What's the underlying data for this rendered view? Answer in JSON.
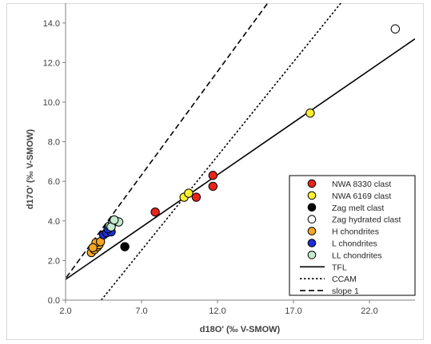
{
  "chart_data": {
    "type": "scatter",
    "xlabel": "d18O' (‰ V-SMOW)",
    "ylabel": "d17O' (‰ V-SMOW)",
    "xlim": [
      2.0,
      25.0
    ],
    "ylim": [
      0.0,
      15.0
    ],
    "x_ticks": [
      "2.0",
      "7.0",
      "12.0",
      "17.0",
      "22.0"
    ],
    "x_tick_values": [
      2,
      7,
      12,
      17,
      22
    ],
    "y_ticks": [
      "0.0",
      "2.0",
      "4.0",
      "6.0",
      "8.0",
      "10.0",
      "12.0",
      "14.0"
    ],
    "y_tick_values": [
      0,
      2,
      4,
      6,
      8,
      10,
      12,
      14
    ],
    "grid": false,
    "legend_position": "lower-right",
    "series": [
      {
        "name": "NWA 8330 clast",
        "color": "#e8231b",
        "marker": "circle",
        "points": [
          [
            7.9,
            4.45
          ],
          [
            10.6,
            5.2
          ],
          [
            11.7,
            6.3
          ],
          [
            11.7,
            5.75
          ]
        ]
      },
      {
        "name": "NWA 6169 clast",
        "color": "#fff12e",
        "marker": "circle",
        "points": [
          [
            9.8,
            5.2
          ],
          [
            10.1,
            5.4
          ],
          [
            18.1,
            9.45
          ]
        ]
      },
      {
        "name": "Zag melt clast",
        "color": "#000000",
        "marker": "circle",
        "points": [
          [
            5.9,
            2.7
          ]
        ]
      },
      {
        "name": "Zag hydrated clast",
        "color": "#ffffff",
        "marker": "circle",
        "points": [
          [
            23.7,
            13.7
          ]
        ]
      },
      {
        "name": "H chondrites",
        "color": "#f5a623",
        "marker": "circle",
        "points": [
          [
            3.7,
            2.4
          ],
          [
            3.9,
            2.55
          ],
          [
            4.1,
            2.7
          ],
          [
            4.2,
            2.8
          ],
          [
            4.0,
            2.9
          ],
          [
            4.3,
            2.95
          ],
          [
            3.8,
            2.65
          ]
        ]
      },
      {
        "name": "L chondrites",
        "color": "#1d2ed8",
        "marker": "circle",
        "points": [
          [
            4.5,
            3.3
          ],
          [
            4.7,
            3.4
          ],
          [
            4.9,
            3.55
          ],
          [
            5.0,
            3.45
          ],
          [
            4.8,
            3.6
          ]
        ]
      },
      {
        "name": "LL chondrites",
        "color": "#c5ead0",
        "marker": "circle",
        "points": [
          [
            4.9,
            3.75
          ],
          [
            5.1,
            3.9
          ],
          [
            5.3,
            4.0
          ],
          [
            5.5,
            3.95
          ],
          [
            5.0,
            3.7
          ],
          [
            5.2,
            4.05
          ]
        ]
      },
      {
        "name": "TFL",
        "color": "#000000",
        "style": "solid",
        "kind": "line",
        "points": [
          [
            0,
            -0.01
          ],
          [
            25.0,
            13.2
          ]
        ]
      },
      {
        "name": "CCAM",
        "color": "#000000",
        "style": "dotted",
        "kind": "line",
        "points": [
          [
            4.35,
            0.0
          ],
          [
            26.0,
            20.6
          ]
        ]
      },
      {
        "name": "slope 1",
        "color": "#000000",
        "style": "dashed",
        "kind": "line",
        "points": [
          [
            0.0,
            -1.0
          ],
          [
            15.3,
            15.0
          ]
        ]
      }
    ]
  }
}
